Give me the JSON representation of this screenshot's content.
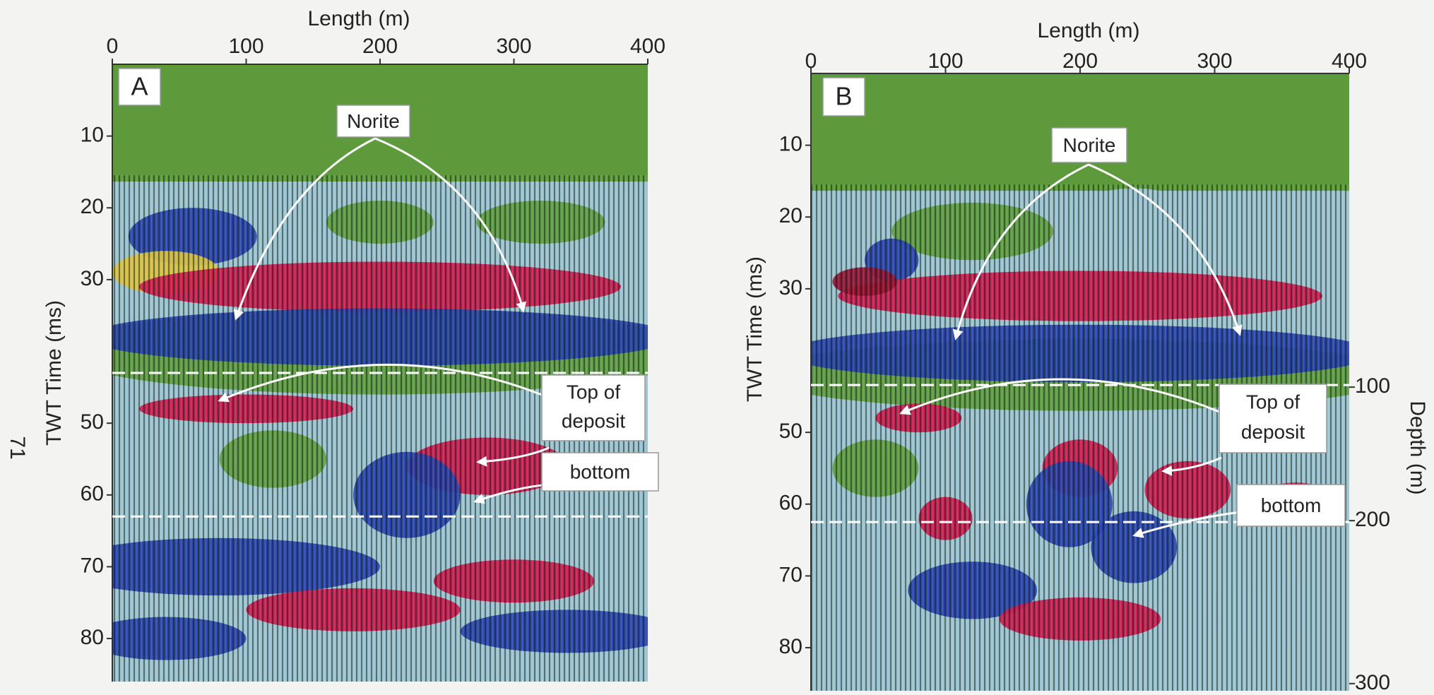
{
  "page_number": "71",
  "chart_data": [
    {
      "type": "seismic-section",
      "panel_label": "A",
      "xlabel": "Length (m)",
      "ylabel": "TWT Time (ms)",
      "xlim": [
        0,
        400
      ],
      "xticks": [
        0,
        100,
        200,
        300,
        400
      ],
      "ylim": [
        0,
        86
      ],
      "yticks": [
        10,
        20,
        30,
        50,
        60,
        70,
        80
      ],
      "horizons": [
        43,
        63
      ],
      "annotations": {
        "norite": "Norite",
        "top": [
          "Top of",
          "deposit"
        ],
        "bottom": "bottom"
      }
    },
    {
      "type": "seismic-section",
      "panel_label": "B",
      "xlabel": "Length (m)",
      "ylabel": "TWT Time (ms)",
      "xlim": [
        0,
        400
      ],
      "xticks": [
        0,
        100,
        200,
        300,
        400
      ],
      "ylim": [
        0,
        86
      ],
      "yticks": [
        10,
        20,
        30,
        50,
        60,
        70,
        80
      ],
      "horizons": [
        43.4,
        62.5
      ],
      "depth_label": "Depth (m)",
      "depth_ticks": [
        {
          "value": 43.7,
          "label": "100"
        },
        {
          "value": 62.3,
          "label": "200"
        },
        {
          "value": 85,
          "label": "300"
        }
      ],
      "annotations": {
        "norite": "Norite",
        "top": [
          "Top of",
          "deposit"
        ],
        "bottom": "bottom"
      }
    }
  ]
}
